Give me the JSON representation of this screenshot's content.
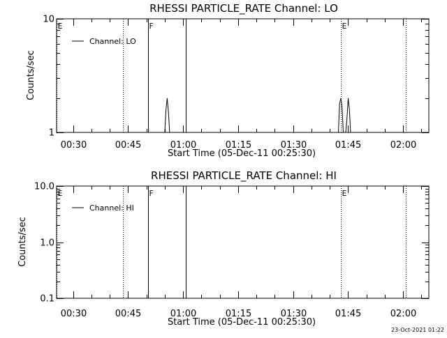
{
  "chart_data": [
    {
      "type": "line",
      "title": "RHESSI PARTICLE_RATE Channel: LO",
      "xlabel": "Start Time (05-Dec-11 00:25:30)",
      "ylabel": "Counts/sec",
      "yscale": "log",
      "ylim": [
        1,
        10
      ],
      "xlim": [
        "00:25:30",
        "02:07:00"
      ],
      "y_ticks": [
        "1",
        "10"
      ],
      "x_ticks": [
        "00:30",
        "00:45",
        "01:00",
        "01:15",
        "01:30",
        "01:45",
        "02:00"
      ],
      "legend": {
        "placement": "top-left",
        "entries": [
          "Channel: LO"
        ]
      },
      "series": [
        {
          "name": "Channel: LO",
          "x": [
            "00:55:00",
            "00:55:20",
            "00:55:40",
            "00:56:00",
            "00:56:20",
            "01:42:20",
            "01:42:40",
            "01:43:00",
            "01:43:20",
            "01:43:40",
            "01:44:00",
            "01:44:20",
            "01:44:40",
            "01:45:00",
            "01:45:20",
            "01:45:40",
            "01:46:00"
          ],
          "values": [
            1,
            1.6,
            2,
            1.5,
            1,
            1,
            1.8,
            2,
            1.7,
            1,
            1,
            1,
            1.3,
            2,
            1.6,
            1,
            1
          ]
        }
      ],
      "markers": [
        {
          "label": "E",
          "time": "00:25:30",
          "style": "dotted"
        },
        {
          "time": "00:43:30",
          "style": "dotted"
        },
        {
          "label": "F",
          "time": "00:50:30",
          "style": "solid"
        },
        {
          "time": "01:00:40",
          "style": "solid"
        },
        {
          "label": "E",
          "time": "01:43:00",
          "style": "dotted"
        },
        {
          "time": "02:00:40",
          "style": "dotted"
        }
      ]
    },
    {
      "type": "line",
      "title": "RHESSI PARTICLE_RATE Channel: HI",
      "xlabel": "Start Time (05-Dec-11 00:25:30)",
      "ylabel": "Counts/sec",
      "yscale": "log",
      "ylim": [
        0.1,
        10
      ],
      "xlim": [
        "00:25:30",
        "02:07:00"
      ],
      "y_ticks": [
        "10.0",
        "1.0",
        "0.1"
      ],
      "x_ticks": [
        "00:30",
        "00:45",
        "01:00",
        "01:15",
        "01:30",
        "01:45",
        "02:00"
      ],
      "legend": {
        "placement": "top-left",
        "entries": [
          "Channel: HI"
        ]
      },
      "series": [
        {
          "name": "Channel: HI",
          "x": [],
          "values": []
        }
      ],
      "markers": [
        {
          "label": "E",
          "time": "00:25:30",
          "style": "dotted"
        },
        {
          "time": "00:43:30",
          "style": "dotted"
        },
        {
          "label": "F",
          "time": "00:50:30",
          "style": "solid"
        },
        {
          "time": "01:00:40",
          "style": "solid"
        },
        {
          "label": "E",
          "time": "01:43:00",
          "style": "dotted"
        },
        {
          "time": "02:00:40",
          "style": "dotted"
        }
      ]
    }
  ],
  "footer": {
    "timestamp": "23-Oct-2021 01:22"
  }
}
